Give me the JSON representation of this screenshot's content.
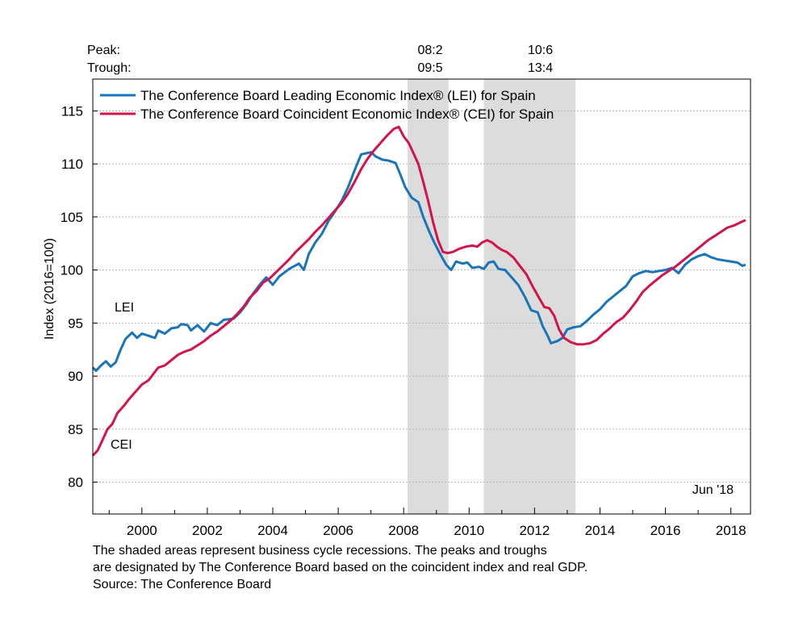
{
  "chart_data": {
    "type": "line",
    "title": "",
    "ylabel": "Index (2016=100)",
    "xlabel": "",
    "xlim": [
      1998.5,
      2018.6
    ],
    "ylim": [
      77,
      118
    ],
    "yticks": [
      80,
      85,
      90,
      95,
      100,
      105,
      110,
      115
    ],
    "xticks": [
      2000,
      2002,
      2004,
      2006,
      2008,
      2010,
      2012,
      2014,
      2016,
      2018
    ],
    "grid": "horizontal dashed",
    "legend_position": "top-left",
    "colors": {
      "lei": "#1a75b8",
      "cei": "#d3134c",
      "recession": "#dcdcdc"
    },
    "recession_header": {
      "peak_label": "Peak:",
      "trough_label": "Trough:",
      "peaks": [
        "08:2",
        "10:6"
      ],
      "troughs": [
        "09:5",
        "13:4"
      ]
    },
    "recessions": [
      {
        "peak": "08:2",
        "trough": "09:5",
        "start": 2008.12,
        "end": 2009.37
      },
      {
        "peak": "10:6",
        "trough": "13:4",
        "start": 2010.45,
        "end": 2013.25
      }
    ],
    "series": [
      {
        "name": "The Conference Board Leading Economic Index® (LEI) for Spain",
        "short_label": "LEI",
        "color": "#1a75b8",
        "points": [
          [
            1998.5,
            90.8
          ],
          [
            1998.6,
            90.5
          ],
          [
            1998.75,
            91.0
          ],
          [
            1998.9,
            91.4
          ],
          [
            1999.05,
            90.9
          ],
          [
            1999.2,
            91.3
          ],
          [
            1999.35,
            92.5
          ],
          [
            1999.5,
            93.5
          ],
          [
            1999.7,
            94.1
          ],
          [
            1999.85,
            93.6
          ],
          [
            2000.0,
            94.0
          ],
          [
            2000.2,
            93.8
          ],
          [
            2000.4,
            93.6
          ],
          [
            2000.5,
            94.3
          ],
          [
            2000.7,
            94.0
          ],
          [
            2000.9,
            94.5
          ],
          [
            2001.1,
            94.6
          ],
          [
            2001.2,
            94.9
          ],
          [
            2001.4,
            94.8
          ],
          [
            2001.5,
            94.3
          ],
          [
            2001.7,
            94.8
          ],
          [
            2001.9,
            94.2
          ],
          [
            2002.1,
            95.0
          ],
          [
            2002.3,
            94.8
          ],
          [
            2002.5,
            95.3
          ],
          [
            2002.8,
            95.4
          ],
          [
            2003.0,
            96.0
          ],
          [
            2003.2,
            96.8
          ],
          [
            2003.4,
            97.8
          ],
          [
            2003.6,
            98.6
          ],
          [
            2003.8,
            99.3
          ],
          [
            2004.0,
            98.6
          ],
          [
            2004.2,
            99.4
          ],
          [
            2004.5,
            100.1
          ],
          [
            2004.8,
            100.6
          ],
          [
            2004.95,
            100.0
          ],
          [
            2005.1,
            101.5
          ],
          [
            2005.3,
            102.6
          ],
          [
            2005.5,
            103.4
          ],
          [
            2005.7,
            104.6
          ],
          [
            2005.9,
            105.5
          ],
          [
            2006.1,
            106.5
          ],
          [
            2006.3,
            107.8
          ],
          [
            2006.5,
            109.4
          ],
          [
            2006.7,
            110.9
          ],
          [
            2006.85,
            111.0
          ],
          [
            2007.0,
            111.1
          ],
          [
            2007.15,
            110.7
          ],
          [
            2007.35,
            110.4
          ],
          [
            2007.55,
            110.3
          ],
          [
            2007.75,
            110.1
          ],
          [
            2007.9,
            109.0
          ],
          [
            2008.05,
            107.8
          ],
          [
            2008.25,
            106.8
          ],
          [
            2008.45,
            106.4
          ],
          [
            2008.6,
            105.0
          ],
          [
            2008.8,
            103.5
          ],
          [
            2008.95,
            102.5
          ],
          [
            2009.1,
            101.6
          ],
          [
            2009.3,
            100.5
          ],
          [
            2009.45,
            100.0
          ],
          [
            2009.6,
            100.8
          ],
          [
            2009.8,
            100.6
          ],
          [
            2009.95,
            100.7
          ],
          [
            2010.1,
            100.2
          ],
          [
            2010.3,
            100.3
          ],
          [
            2010.45,
            100.1
          ],
          [
            2010.6,
            100.7
          ],
          [
            2010.75,
            100.8
          ],
          [
            2010.9,
            100.1
          ],
          [
            2011.1,
            100.0
          ],
          [
            2011.3,
            99.3
          ],
          [
            2011.5,
            98.6
          ],
          [
            2011.7,
            97.5
          ],
          [
            2011.9,
            96.2
          ],
          [
            2012.1,
            96.0
          ],
          [
            2012.25,
            94.7
          ],
          [
            2012.4,
            93.8
          ],
          [
            2012.5,
            93.1
          ],
          [
            2012.7,
            93.3
          ],
          [
            2012.85,
            93.6
          ],
          [
            2013.0,
            94.4
          ],
          [
            2013.2,
            94.6
          ],
          [
            2013.4,
            94.7
          ],
          [
            2013.6,
            95.2
          ],
          [
            2013.8,
            95.8
          ],
          [
            2014.0,
            96.3
          ],
          [
            2014.2,
            97.0
          ],
          [
            2014.4,
            97.5
          ],
          [
            2014.6,
            98.0
          ],
          [
            2014.8,
            98.5
          ],
          [
            2015.0,
            99.4
          ],
          [
            2015.2,
            99.7
          ],
          [
            2015.4,
            99.9
          ],
          [
            2015.6,
            99.8
          ],
          [
            2015.8,
            99.9
          ],
          [
            2016.0,
            100.0
          ],
          [
            2016.2,
            100.2
          ],
          [
            2016.4,
            99.7
          ],
          [
            2016.6,
            100.5
          ],
          [
            2016.8,
            101.0
          ],
          [
            2017.0,
            101.3
          ],
          [
            2017.2,
            101.5
          ],
          [
            2017.4,
            101.2
          ],
          [
            2017.6,
            101.0
          ],
          [
            2017.8,
            100.9
          ],
          [
            2018.0,
            100.8
          ],
          [
            2018.2,
            100.7
          ],
          [
            2018.35,
            100.4
          ],
          [
            2018.45,
            100.5
          ]
        ]
      },
      {
        "name": "The Conference Board Coincident Economic Index® (CEI) for Spain",
        "short_label": "CEI",
        "color": "#d3134c",
        "points": [
          [
            1998.5,
            82.5
          ],
          [
            1998.65,
            83.0
          ],
          [
            1998.8,
            84.0
          ],
          [
            1998.95,
            85.0
          ],
          [
            1999.1,
            85.5
          ],
          [
            1999.25,
            86.5
          ],
          [
            1999.45,
            87.2
          ],
          [
            1999.6,
            87.8
          ],
          [
            1999.8,
            88.5
          ],
          [
            2000.0,
            89.2
          ],
          [
            2000.2,
            89.6
          ],
          [
            2000.35,
            90.2
          ],
          [
            2000.5,
            90.8
          ],
          [
            2000.7,
            91.0
          ],
          [
            2000.9,
            91.5
          ],
          [
            2001.1,
            92.0
          ],
          [
            2001.3,
            92.3
          ],
          [
            2001.5,
            92.5
          ],
          [
            2001.7,
            92.9
          ],
          [
            2001.9,
            93.3
          ],
          [
            2002.1,
            93.8
          ],
          [
            2002.3,
            94.2
          ],
          [
            2002.5,
            94.7
          ],
          [
            2002.7,
            95.2
          ],
          [
            2002.9,
            95.8
          ],
          [
            2003.1,
            96.5
          ],
          [
            2003.3,
            97.4
          ],
          [
            2003.5,
            98.0
          ],
          [
            2003.7,
            98.8
          ],
          [
            2003.9,
            99.2
          ],
          [
            2004.1,
            99.8
          ],
          [
            2004.3,
            100.4
          ],
          [
            2004.5,
            101.0
          ],
          [
            2004.7,
            101.7
          ],
          [
            2004.9,
            102.3
          ],
          [
            2005.1,
            102.9
          ],
          [
            2005.3,
            103.6
          ],
          [
            2005.5,
            104.2
          ],
          [
            2005.7,
            104.9
          ],
          [
            2005.9,
            105.6
          ],
          [
            2006.1,
            106.3
          ],
          [
            2006.3,
            107.2
          ],
          [
            2006.5,
            108.3
          ],
          [
            2006.7,
            109.5
          ],
          [
            2006.9,
            110.5
          ],
          [
            2007.1,
            111.3
          ],
          [
            2007.3,
            112.0
          ],
          [
            2007.5,
            112.7
          ],
          [
            2007.7,
            113.3
          ],
          [
            2007.85,
            113.5
          ],
          [
            2008.0,
            112.6
          ],
          [
            2008.15,
            112.0
          ],
          [
            2008.3,
            111.0
          ],
          [
            2008.45,
            110.0
          ],
          [
            2008.6,
            108.3
          ],
          [
            2008.75,
            106.5
          ],
          [
            2008.9,
            104.5
          ],
          [
            2009.05,
            102.8
          ],
          [
            2009.2,
            101.7
          ],
          [
            2009.35,
            101.6
          ],
          [
            2009.5,
            101.7
          ],
          [
            2009.7,
            102.0
          ],
          [
            2009.9,
            102.2
          ],
          [
            2010.1,
            102.3
          ],
          [
            2010.25,
            102.2
          ],
          [
            2010.4,
            102.6
          ],
          [
            2010.55,
            102.8
          ],
          [
            2010.7,
            102.6
          ],
          [
            2010.85,
            102.2
          ],
          [
            2011.0,
            101.9
          ],
          [
            2011.15,
            101.7
          ],
          [
            2011.35,
            101.2
          ],
          [
            2011.55,
            100.4
          ],
          [
            2011.75,
            99.6
          ],
          [
            2011.95,
            98.4
          ],
          [
            2012.15,
            97.3
          ],
          [
            2012.3,
            96.5
          ],
          [
            2012.45,
            96.4
          ],
          [
            2012.6,
            95.7
          ],
          [
            2012.75,
            94.4
          ],
          [
            2012.9,
            93.6
          ],
          [
            2013.1,
            93.2
          ],
          [
            2013.3,
            93.0
          ],
          [
            2013.5,
            93.0
          ],
          [
            2013.7,
            93.1
          ],
          [
            2013.9,
            93.4
          ],
          [
            2014.1,
            94.0
          ],
          [
            2014.3,
            94.5
          ],
          [
            2014.5,
            95.1
          ],
          [
            2014.7,
            95.5
          ],
          [
            2014.9,
            96.2
          ],
          [
            2015.1,
            97.0
          ],
          [
            2015.3,
            97.9
          ],
          [
            2015.5,
            98.5
          ],
          [
            2015.7,
            99.0
          ],
          [
            2015.9,
            99.5
          ],
          [
            2016.1,
            99.9
          ],
          [
            2016.3,
            100.3
          ],
          [
            2016.5,
            100.8
          ],
          [
            2016.7,
            101.3
          ],
          [
            2016.9,
            101.8
          ],
          [
            2017.1,
            102.3
          ],
          [
            2017.3,
            102.8
          ],
          [
            2017.5,
            103.2
          ],
          [
            2017.7,
            103.6
          ],
          [
            2017.9,
            104.0
          ],
          [
            2018.1,
            104.2
          ],
          [
            2018.3,
            104.5
          ],
          [
            2018.45,
            104.7
          ]
        ]
      }
    ],
    "annotations": [
      "Jun '18"
    ]
  },
  "footnote": {
    "line1": "The shaded areas represent business cycle recessions. The peaks and troughs",
    "line2": "are designated by The Conference Board based on the coincident index and real GDP.",
    "line3": "Source: The Conference Board"
  }
}
